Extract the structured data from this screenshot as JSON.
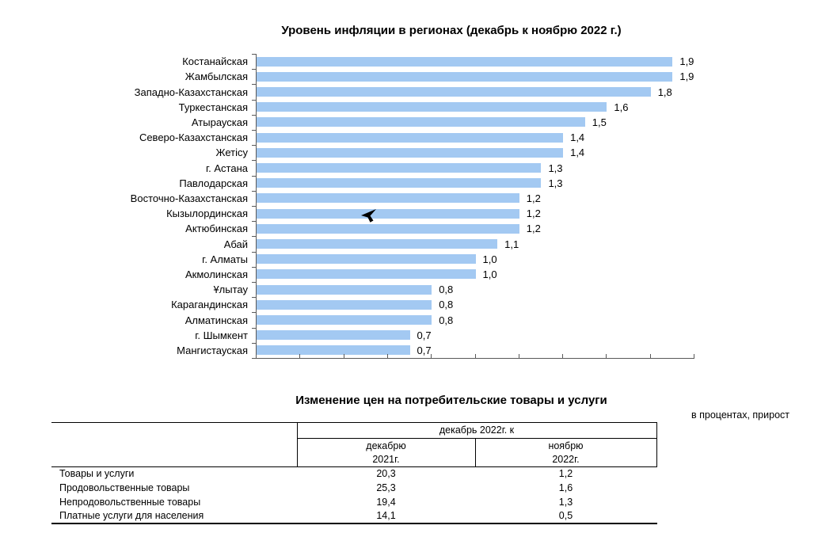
{
  "chart": {
    "title": "Уровень инфляции в регионах (декабрь к ноябрю 2022 г.)"
  },
  "chart_data": {
    "type": "bar",
    "orientation": "horizontal",
    "title": "Уровень инфляции в регионах (декабрь к ноябрю 2022 г.)",
    "categories": [
      "Костанайская",
      "Жамбылская",
      "Западно-Казахстанская",
      "Туркестанская",
      "Атырауская",
      "Северо-Казахстанская",
      "Жетісу",
      "г. Астана",
      "Павлодарская",
      "Восточно-Казахстанская",
      "Кызылординская",
      "Актюбинская",
      "Абай",
      "г. Алматы",
      "Акмолинская",
      "Ұлытау",
      "Карагандинская",
      "Алматинская",
      "г. Шымкент",
      "Мангистауская"
    ],
    "values": [
      1.9,
      1.9,
      1.8,
      1.6,
      1.5,
      1.4,
      1.4,
      1.3,
      1.3,
      1.2,
      1.2,
      1.2,
      1.1,
      1.0,
      1.0,
      0.8,
      0.8,
      0.8,
      0.7,
      0.7
    ],
    "value_labels": [
      "1,9",
      "1,9",
      "1,8",
      "1,6",
      "1,5",
      "1,4",
      "1,4",
      "1,3",
      "1,3",
      "1,2",
      "1,2",
      "1,2",
      "1,1",
      "1,0",
      "1,0",
      "0,8",
      "0,8",
      "0,8",
      "0,7",
      "0,7"
    ],
    "xlabel": "",
    "ylabel": "",
    "xlim": [
      0,
      2.0
    ],
    "x_tick_step": 0.2,
    "grid": false,
    "legend": "none",
    "bar_color": "#A3C9F2",
    "axis_color": "#595959",
    "data_labels_shown": true
  },
  "table": {
    "title": "Изменение цен на потребительские товары и услуги",
    "note": "в процентах, прирост",
    "header": {
      "group": "декабрь 2022г. к",
      "col1_top": "декабрю",
      "col1_bottom": "2021г.",
      "col2_top": "ноябрю",
      "col2_bottom": "2022г."
    },
    "rows": [
      {
        "label": "Товары и услуги",
        "dec2021": "20,3",
        "nov2022": "1,2"
      },
      {
        "label": "Продовольственные товары",
        "dec2021": "25,3",
        "nov2022": "1,6"
      },
      {
        "label": "Непродовольственные товары",
        "dec2021": "19,4",
        "nov2022": "1,3"
      },
      {
        "label": "Платные услуги для населения",
        "dec2021": "14,1",
        "nov2022": "0,5"
      }
    ]
  },
  "cursor": {
    "type": "arrow-left"
  }
}
